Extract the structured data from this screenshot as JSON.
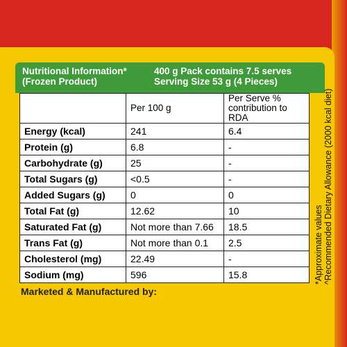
{
  "header": {
    "title": "Nutritional Information*",
    "subtitle": "(Frozen Product)",
    "pack": "400 g Pack contains 7.5 serves",
    "serving": "Serving Size  53 g (4 Pieces)"
  },
  "table": {
    "columns": [
      "Per 100 g",
      [
        "Per Serve %",
        "contribution to RDA"
      ]
    ],
    "rows": [
      [
        "Energy (kcal)",
        "241",
        "6.4"
      ],
      [
        "Protein (g)",
        "6.8",
        "-"
      ],
      [
        "Carbohydrate (g)",
        "25",
        "-"
      ],
      [
        "Total Sugars (g)",
        "<0.5",
        "-"
      ],
      [
        "Added Sugars (g)",
        "0",
        "0"
      ],
      [
        "Total Fat (g)",
        "12.62",
        "10"
      ],
      [
        "Saturated Fat (g)",
        "Not more than 7.66",
        "18.5"
      ],
      [
        "Trans Fat (g)",
        "Not more than 0.1",
        "2.5"
      ],
      [
        "Cholesterol (mg)",
        "22.49",
        "-"
      ],
      [
        "Sodium (mg)",
        "596",
        "15.8"
      ]
    ]
  },
  "side_notes": [
    "*Approximate values",
    "^Recommended Dietary Allowance (2000 kcal diet)"
  ],
  "footer": "Marketed & Manufactured by:"
}
